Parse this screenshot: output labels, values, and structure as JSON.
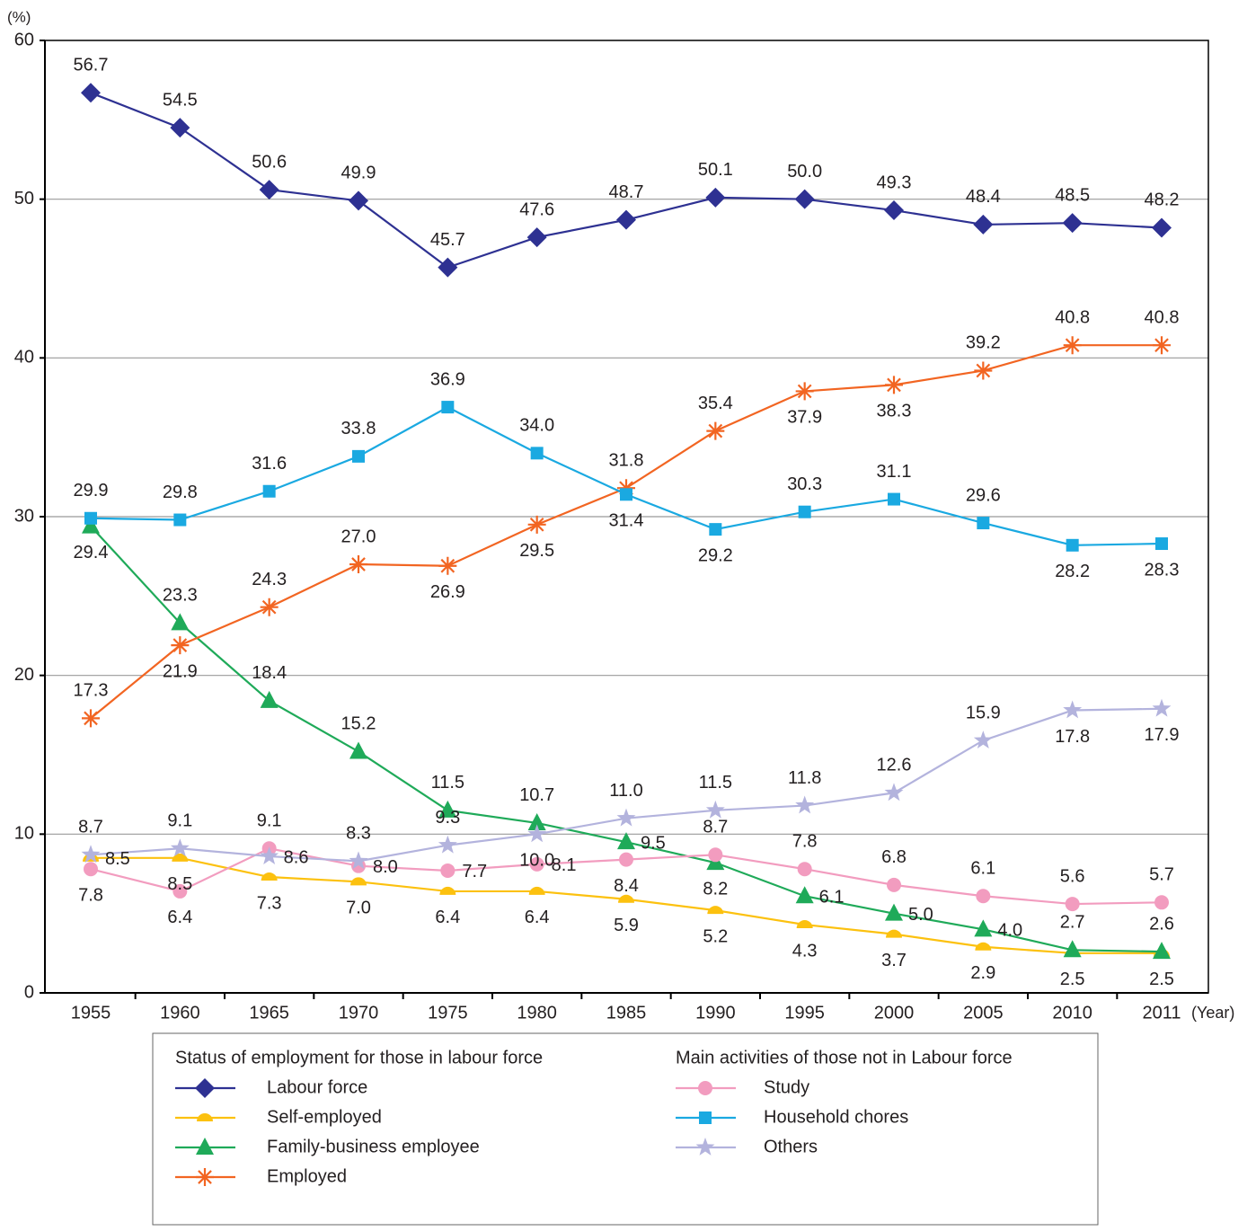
{
  "chart_data": {
    "type": "line",
    "y_label": "(%)",
    "x_label": "(Year)",
    "categories": [
      "1955",
      "1960",
      "1965",
      "1970",
      "1975",
      "1980",
      "1985",
      "1990",
      "1995",
      "2000",
      "2005",
      "2010",
      "2011"
    ],
    "ylim": [
      0,
      60
    ],
    "yticks": [
      0,
      10,
      20,
      30,
      40,
      50,
      60
    ],
    "grid": true,
    "series_groups": [
      {
        "title": "Status of employment for those in labour force",
        "series": [
          {
            "name": "Labour force",
            "color": "#2e3192",
            "marker": "diamond",
            "values": [
              56.7,
              54.5,
              50.6,
              49.9,
              45.7,
              47.6,
              48.7,
              50.1,
              50.0,
              49.3,
              48.4,
              48.5,
              48.2
            ],
            "value_labels": [
              "56.7",
              "54.5",
              "50.6",
              "49.9",
              "45.7",
              "47.6",
              "48.7",
              "50.1",
              "50.0",
              "49.3",
              "48.4",
              "48.5",
              "48.2"
            ]
          },
          {
            "name": "Self-employed",
            "color": "#fcc10f",
            "marker": "semicircle",
            "values": [
              8.5,
              8.5,
              7.3,
              7.0,
              6.4,
              6.4,
              5.9,
              5.2,
              4.3,
              3.7,
              2.9,
              2.5,
              2.5
            ],
            "value_labels": [
              "8.5",
              "8.5",
              "7.3",
              "7.0",
              "6.4",
              "6.4",
              "5.9",
              "5.2",
              "4.3",
              "3.7",
              "2.9",
              "2.5",
              "2.5"
            ]
          },
          {
            "name": "Family-business employee",
            "color": "#1faa59",
            "marker": "triangle",
            "values": [
              29.4,
              23.3,
              18.4,
              15.2,
              11.5,
              10.7,
              9.5,
              8.2,
              6.1,
              5.0,
              4.0,
              2.7,
              2.6
            ],
            "value_labels": [
              "29.4",
              "23.3",
              "18.4",
              "15.2",
              "11.5",
              "10.7",
              "9.5",
              "8.2",
              "6.1",
              "5.0",
              "4.0",
              "2.7",
              "2.6"
            ]
          },
          {
            "name": "Employed",
            "color": "#f26522",
            "marker": "asterisk",
            "values": [
              17.3,
              21.9,
              24.3,
              27.0,
              26.9,
              29.5,
              31.8,
              35.4,
              37.9,
              38.3,
              39.2,
              40.8,
              40.8
            ],
            "value_labels": [
              "17.3",
              "21.9",
              "24.3",
              "27.0",
              "26.9",
              "29.5",
              "31.8",
              "35.4",
              "37.9",
              "38.3",
              "39.2",
              "40.8",
              "40.8"
            ]
          }
        ]
      },
      {
        "title": "Main activities of those not in Labour force",
        "series": [
          {
            "name": "Study",
            "color": "#f29cbf",
            "marker": "circle",
            "values": [
              7.8,
              6.4,
              9.1,
              8.0,
              7.7,
              8.1,
              8.4,
              8.7,
              7.8,
              6.8,
              6.1,
              5.6,
              5.7
            ],
            "value_labels": [
              "7.8",
              "6.4",
              "9.1",
              "8.0",
              "7.7",
              "8.1",
              "8.4",
              "8.7",
              "7.8",
              "6.8",
              "6.1",
              "5.6",
              "5.7"
            ]
          },
          {
            "name": "Household chores",
            "color": "#1aa9e1",
            "marker": "square",
            "values": [
              29.9,
              29.8,
              31.6,
              33.8,
              36.9,
              34.0,
              31.4,
              29.2,
              30.3,
              31.1,
              29.6,
              28.2,
              28.3
            ],
            "value_labels": [
              "29.9",
              "29.8",
              "31.6",
              "33.8",
              "36.9",
              "34.0",
              "31.4",
              "29.2",
              "30.3",
              "31.1",
              "29.6",
              "28.2",
              "28.3"
            ]
          },
          {
            "name": "Others",
            "color": "#b3b3dd",
            "marker": "star",
            "values": [
              8.7,
              9.1,
              8.6,
              8.3,
              9.3,
              10.0,
              11.0,
              11.5,
              11.8,
              12.6,
              15.9,
              17.8,
              17.9
            ],
            "value_labels": [
              "8.7",
              "9.1",
              "8.6",
              "8.3",
              "9.3",
              "10.0",
              "11.0",
              "11.5",
              "11.8",
              "12.6",
              "15.9",
              "17.8",
              "17.9"
            ]
          }
        ]
      }
    ]
  }
}
